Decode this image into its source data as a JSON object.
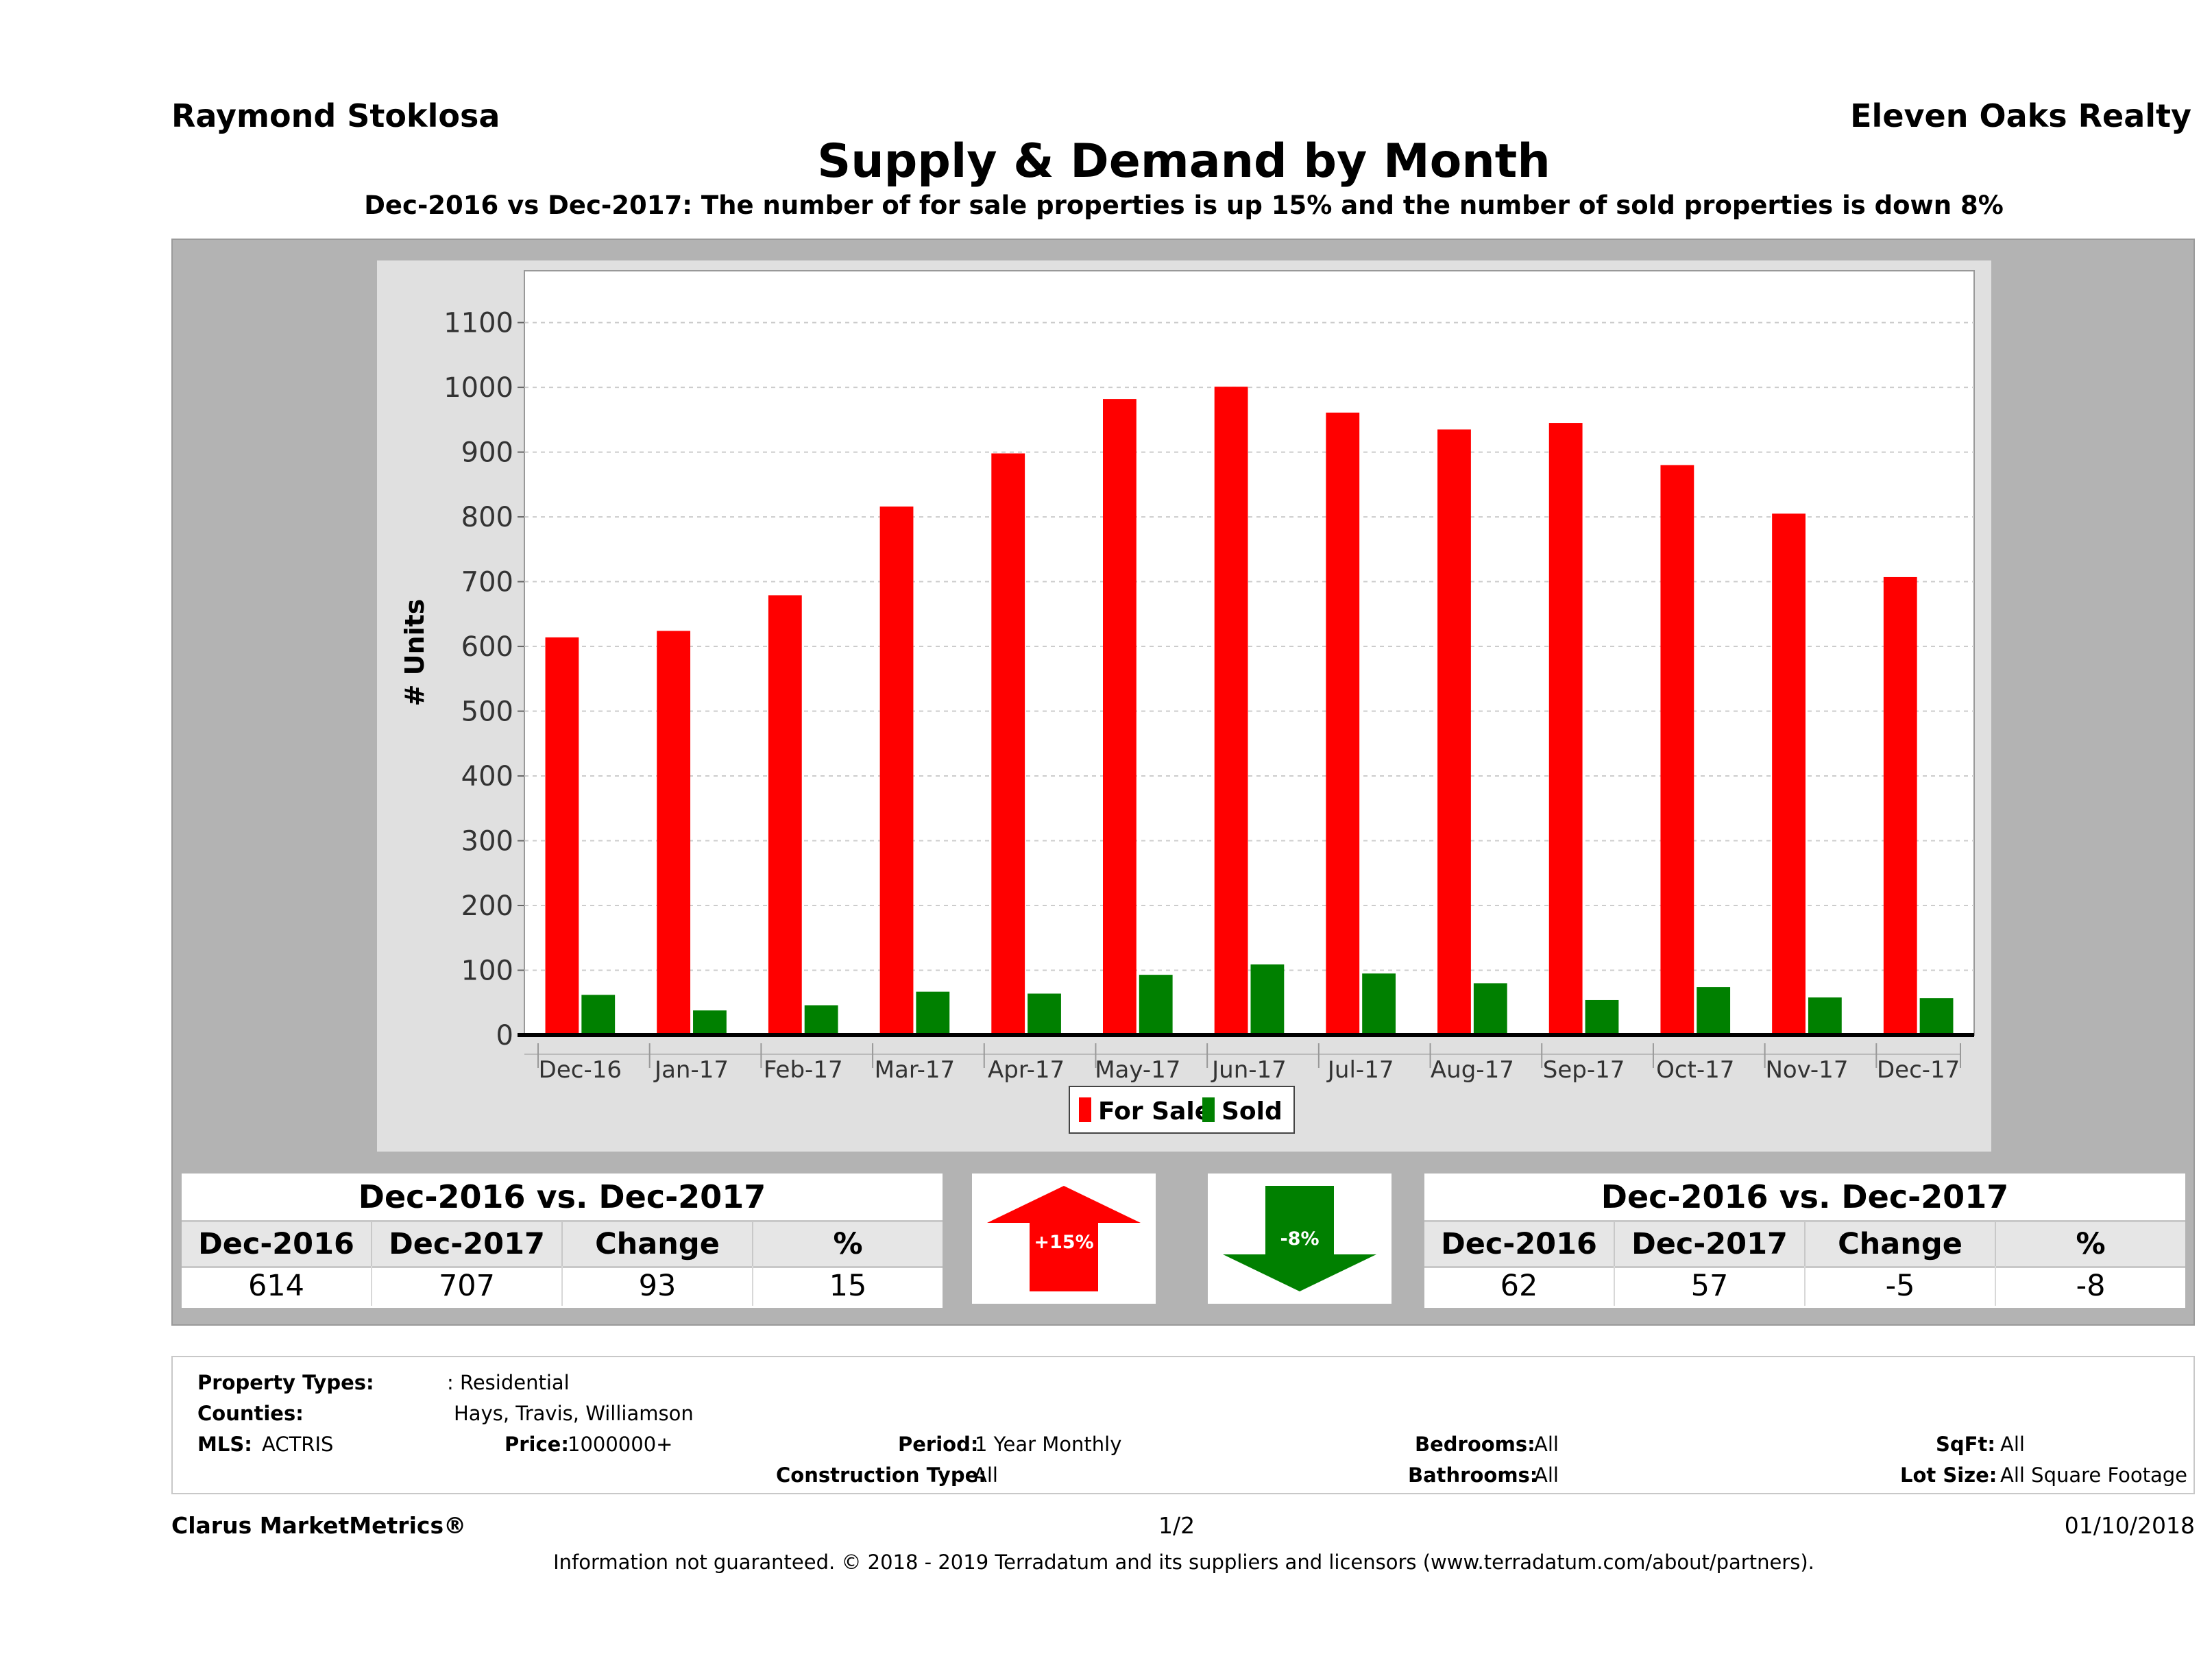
{
  "header": {
    "agent": "Raymond Stoklosa",
    "company": "Eleven Oaks Realty",
    "title": "Supply & Demand by Month",
    "subtitle": "Dec-2016 vs Dec-2017: The number of for sale properties is up 15% and the number of sold properties is down 8%"
  },
  "chart_data": {
    "type": "bar",
    "title": "Supply & Demand by Month",
    "xlabel": "",
    "ylabel": "# Units",
    "ylim": [
      0,
      1180
    ],
    "yticks": [
      0,
      100,
      200,
      300,
      400,
      500,
      600,
      700,
      800,
      900,
      1000,
      1100
    ],
    "grid": true,
    "legend": "bottom-center",
    "categories": [
      "Dec-16",
      "Jan-17",
      "Feb-17",
      "Mar-17",
      "Apr-17",
      "May-17",
      "Jun-17",
      "Jul-17",
      "Aug-17",
      "Sep-17",
      "Oct-17",
      "Nov-17",
      "Dec-17"
    ],
    "series": [
      {
        "name": "For Sale",
        "color": "#ff0000",
        "values": [
          614,
          624,
          679,
          816,
          898,
          982,
          1001,
          961,
          935,
          945,
          880,
          805,
          707
        ]
      },
      {
        "name": "Sold",
        "color": "#008000",
        "values": [
          62,
          38,
          46,
          67,
          64,
          93,
          109,
          95,
          80,
          54,
          74,
          58,
          57
        ]
      }
    ]
  },
  "for_sale_table": {
    "title": "Dec-2016 vs. Dec-2017",
    "columns": [
      "Dec-2016",
      "Dec-2017",
      "Change",
      "%"
    ],
    "values": [
      "614",
      "707",
      "93",
      "15"
    ]
  },
  "for_sale_arrow": {
    "label": "+15%",
    "direction": "up",
    "color": "#ff0000"
  },
  "sold_arrow": {
    "label": "-8%",
    "direction": "down",
    "color": "#008000"
  },
  "sold_table": {
    "title": "Dec-2016 vs. Dec-2017",
    "columns": [
      "Dec-2016",
      "Dec-2017",
      "Change",
      "%"
    ],
    "values": [
      "62",
      "57",
      "-5",
      "-8"
    ]
  },
  "filters": {
    "property_types_label": "Property Types:",
    "property_types": ": Residential",
    "counties_label": "Counties:",
    "counties": "Hays, Travis, Williamson",
    "mls_label": "MLS:",
    "mls": "ACTRIS",
    "price_label": "Price:",
    "price": "1000000+",
    "period_label": "Period:",
    "period": "1 Year Monthly",
    "construction_label": "Construction Type:",
    "construction": "All",
    "bedrooms_label": "Bedrooms:",
    "bedrooms": "All",
    "bathrooms_label": "Bathrooms:",
    "bathrooms": "All",
    "sqft_label": "SqFt:",
    "sqft": "All",
    "lot_size_label": "Lot Size:",
    "lot_size": "All Square Footage"
  },
  "footer": {
    "brand": "Clarus MarketMetrics®",
    "page": "1/2",
    "date": "01/10/2018",
    "disclaimer": "Information not guaranteed. © 2018 - 2019 Terradatum and its suppliers and licensors (www.terradatum.com/about/partners)."
  }
}
